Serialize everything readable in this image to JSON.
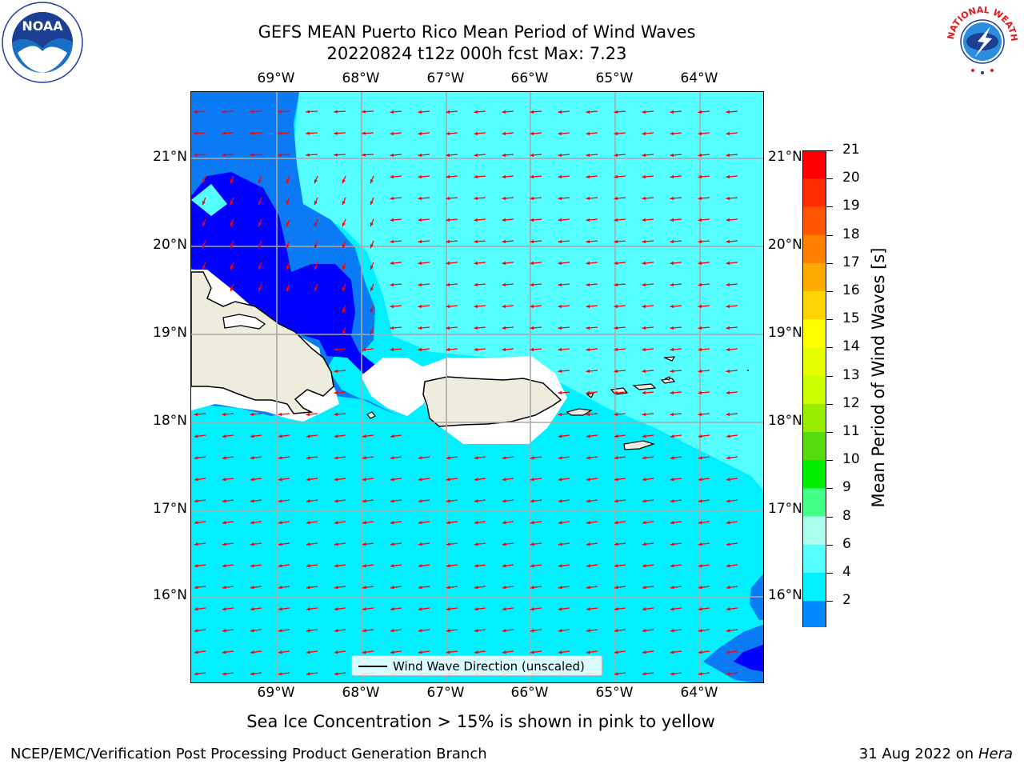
{
  "title": {
    "line1": "GEFS MEAN Puerto Rico Mean Period of Wind Waves",
    "line2": "20220824 t12z 000h fcst   Max: 7.23"
  },
  "logos": {
    "left": {
      "text": "NOAA",
      "ring_text": "NATIONAL OCEANIC AND ATMOSPHERIC ADMINISTRATION · U.S. DEPARTMENT OF COMMERCE"
    },
    "right": {
      "ring_text": "NATIONAL WEATHER SERVICE"
    }
  },
  "map": {
    "lon_labels": [
      "69°W",
      "68°W",
      "67°W",
      "66°W",
      "65°W",
      "64°W"
    ],
    "lat_labels": [
      "21°N",
      "20°N",
      "19°N",
      "18°N",
      "17°N",
      "16°N"
    ],
    "land_color": "#eeecdc",
    "arrow_color": "#ff0000",
    "legend": "Wind Wave Direction (unscaled)"
  },
  "colorbar": {
    "title": "Mean Period of Wind Waves [s]",
    "ticks": [
      "21",
      "20",
      "19",
      "18",
      "17",
      "16",
      "15",
      "14",
      "13",
      "12",
      "11",
      "10",
      "9",
      "8",
      "6",
      "4",
      "2"
    ],
    "colors": [
      "#ff0000",
      "#ff2a00",
      "#ff5500",
      "#ff8000",
      "#ffaa00",
      "#ffd400",
      "#ffff00",
      "#e6ff00",
      "#ccff00",
      "#99ee00",
      "#55dd11",
      "#00ee00",
      "#44ff88",
      "#aaffee",
      "#55ffff",
      "#00f0ff",
      "#0088ff"
    ],
    "extend_color": "#0000ff"
  },
  "caption": "Sea Ice Concentration > 15% is shown in pink to yellow",
  "footer": {
    "left": "NCEP/EMC/Verification Post Processing Product Generation Branch",
    "right_date": "31 Aug 2022 on",
    "right_host": "Hera"
  }
}
